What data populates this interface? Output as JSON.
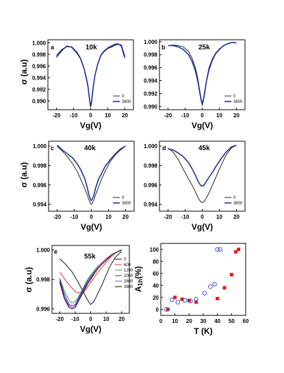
{
  "chart_data": [
    {
      "panel": "a",
      "type": "line",
      "annotation": "10k",
      "xlabel": "Vg(V)",
      "ylabel": "σ (a.u)",
      "xlim": [
        -25,
        25
      ],
      "ylim": [
        0.9885,
        1.0005
      ],
      "xticks": [
        -20,
        -10,
        0,
        10,
        20
      ],
      "yticks": [
        0.99,
        0.992,
        0.994,
        0.996,
        0.998,
        1.0
      ],
      "series": [
        {
          "name": "0",
          "color": "#222222",
          "x": [
            -20,
            -17,
            -14,
            -11,
            -8,
            -6,
            -4,
            -2.5,
            -1.5,
            -1,
            -0.5,
            0,
            0.5,
            1,
            1.5,
            2.5,
            4,
            6,
            8,
            10,
            12,
            14,
            16,
            18,
            19,
            20
          ],
          "y": [
            0.9978,
            0.9988,
            0.9993,
            0.9993,
            0.9984,
            0.9974,
            0.9958,
            0.994,
            0.9925,
            0.9912,
            0.99,
            0.9893,
            0.99,
            0.9913,
            0.9926,
            0.9945,
            0.9963,
            0.9978,
            0.9985,
            0.999,
            0.9992,
            0.9995,
            0.9997,
            0.9996,
            0.9986,
            0.9977
          ]
        },
        {
          "name": "3600",
          "color": "#1f2f9a",
          "x": [
            -20,
            -17,
            -14,
            -11,
            -8,
            -6,
            -4,
            -2.5,
            -1.5,
            -1,
            -0.5,
            0,
            0.5,
            1,
            1.5,
            2.5,
            4,
            6,
            8,
            10,
            12,
            14,
            16,
            18,
            19,
            20
          ],
          "y": [
            0.9975,
            0.9986,
            0.9994,
            0.9992,
            0.9982,
            0.9973,
            0.9957,
            0.9938,
            0.9923,
            0.991,
            0.9898,
            0.989,
            0.9898,
            0.9911,
            0.9925,
            0.9944,
            0.9962,
            0.9979,
            0.9986,
            0.9991,
            0.9994,
            0.9997,
            0.9998,
            0.9994,
            0.9983,
            0.9974
          ]
        }
      ]
    },
    {
      "panel": "b",
      "type": "line",
      "annotation": "25k",
      "xlabel": "Vg(V)",
      "ylabel": "",
      "xlim": [
        -25,
        25
      ],
      "ylim": [
        0.9895,
        1.0003
      ],
      "xticks": [
        -20,
        -10,
        0,
        10,
        20
      ],
      "yticks": [
        0.99,
        0.992,
        0.994,
        0.996,
        0.998,
        1.0
      ],
      "series": [
        {
          "name": "0",
          "color": "#222222",
          "x": [
            -20,
            -17,
            -14,
            -11,
            -8,
            -6,
            -4,
            -2.5,
            -1.5,
            -0.5,
            0,
            0.5,
            1.5,
            2.5,
            4,
            6,
            8,
            10,
            12,
            14,
            16,
            18,
            20
          ],
          "y": [
            0.9994,
            0.9995,
            0.9994,
            0.9992,
            0.9985,
            0.9975,
            0.996,
            0.9942,
            0.9925,
            0.991,
            0.9905,
            0.991,
            0.9925,
            0.9942,
            0.996,
            0.9974,
            0.9983,
            0.9989,
            0.9993,
            0.9996,
            0.9998,
            0.9999,
            0.9998
          ]
        },
        {
          "name": "3600",
          "color": "#1f2f9a",
          "x": [
            -20,
            -17,
            -14,
            -11,
            -8,
            -6,
            -4,
            -2.5,
            -1.5,
            -0.5,
            0,
            0.5,
            1.5,
            2.5,
            4,
            6,
            8,
            10,
            12,
            14,
            16,
            18,
            20
          ],
          "y": [
            0.9994,
            0.9994,
            0.9992,
            0.9988,
            0.998,
            0.997,
            0.9955,
            0.9938,
            0.9922,
            0.9908,
            0.9903,
            0.9908,
            0.9922,
            0.994,
            0.9957,
            0.9972,
            0.9982,
            0.9988,
            0.9993,
            0.9996,
            0.9998,
            0.9999,
            0.9998
          ]
        }
      ]
    },
    {
      "panel": "c",
      "type": "line",
      "annotation": "40k",
      "xlabel": "Vg(V)",
      "ylabel": "σ (a.u)",
      "xlim": [
        -25,
        25
      ],
      "ylim": [
        0.9933,
        1.0005
      ],
      "xticks": [
        -20,
        -10,
        0,
        10,
        20
      ],
      "yticks": [
        0.994,
        0.996,
        0.998,
        1.0
      ],
      "series": [
        {
          "name": "0",
          "color": "#222222",
          "x": [
            -20,
            -17,
            -14,
            -11,
            -8,
            -6,
            -4,
            -2.5,
            -1.5,
            -0.5,
            0,
            0.5,
            1.5,
            2.5,
            4,
            6,
            8,
            11,
            14,
            17,
            20
          ],
          "y": [
            1.0,
            0.9995,
            0.9989,
            0.9982,
            0.9973,
            0.9965,
            0.9957,
            0.995,
            0.9945,
            0.9941,
            0.994,
            0.9941,
            0.9945,
            0.995,
            0.9957,
            0.9966,
            0.9974,
            0.9984,
            0.9991,
            0.9996,
            1.0
          ]
        },
        {
          "name": "3600",
          "color": "#1f2f9a",
          "x": [
            -20,
            -17,
            -14,
            -11,
            -8,
            -6,
            -4,
            -2.5,
            -1.5,
            -0.5,
            0,
            0.5,
            1.5,
            2.5,
            4,
            6,
            8,
            11,
            14,
            17,
            20
          ],
          "y": [
            1.0001,
            0.9996,
            0.9992,
            0.9988,
            0.9981,
            0.9975,
            0.9967,
            0.9958,
            0.995,
            0.9945,
            0.9944,
            0.9945,
            0.995,
            0.9957,
            0.9965,
            0.9972,
            0.9979,
            0.9986,
            0.9992,
            0.9997,
            1.0
          ]
        }
      ]
    },
    {
      "panel": "d",
      "type": "line",
      "annotation": "45k",
      "xlabel": "Vg(V)",
      "ylabel": "",
      "xlim": [
        -25,
        25
      ],
      "ylim": [
        0.9933,
        1.0005
      ],
      "xticks": [
        -20,
        -10,
        0,
        10,
        20
      ],
      "yticks": [
        0.994,
        0.996,
        0.998,
        1.0
      ],
      "series": [
        {
          "name": "0",
          "color": "#222222",
          "x": [
            -20,
            -17,
            -14,
            -11,
            -8,
            -6,
            -4,
            -2.5,
            -1.5,
            -0.5,
            0,
            0.5,
            1.5,
            2.5,
            4,
            6,
            8,
            11,
            14,
            17,
            20
          ],
          "y": [
            0.9998,
            0.9994,
            0.9986,
            0.9976,
            0.9966,
            0.996,
            0.9953,
            0.9947,
            0.9944,
            0.9942,
            0.9942,
            0.9942,
            0.9944,
            0.9947,
            0.9952,
            0.996,
            0.9968,
            0.998,
            0.9991,
            0.9998,
            1.0001
          ]
        },
        {
          "name": "3600",
          "color": "#1f2f9a",
          "x": [
            -20,
            -17,
            -14,
            -11,
            -8,
            -6,
            -4,
            -2.5,
            -1.5,
            -0.5,
            0,
            0.5,
            1.5,
            2.5,
            4,
            6,
            8,
            11,
            14,
            17,
            20
          ],
          "y": [
            0.9997,
            0.9996,
            0.9993,
            0.9989,
            0.9983,
            0.9977,
            0.997,
            0.9964,
            0.9961,
            0.9959,
            0.9959,
            0.9959,
            0.9961,
            0.9964,
            0.9968,
            0.9973,
            0.9979,
            0.9987,
            0.9994,
            0.9999,
            1.0001
          ]
        }
      ]
    },
    {
      "panel": "e",
      "type": "line",
      "annotation": "55k",
      "xlabel": "Vg(V)",
      "ylabel": "σ (a.u)",
      "xlim": [
        -25,
        25
      ],
      "ylim": [
        0.9957,
        1.0003
      ],
      "xticks": [
        -20,
        -10,
        0,
        10,
        20
      ],
      "yticks": [
        0.996,
        0.998,
        1.0
      ],
      "series": [
        {
          "name": "0",
          "color": "#111111",
          "x": [
            -20,
            -16,
            -12,
            -8,
            -4,
            -2,
            0,
            2,
            4,
            8,
            12,
            16,
            20
          ],
          "y": [
            0.9994,
            0.999,
            0.9985,
            0.9978,
            0.997,
            0.9966,
            0.9963,
            0.9965,
            0.9969,
            0.9978,
            0.9988,
            0.9995,
            0.9999
          ]
        },
        {
          "name": "600",
          "color": "#e8322b",
          "x": [
            -20,
            -16,
            -12,
            -9,
            -6,
            -4,
            -2,
            0,
            2,
            4,
            8,
            12,
            16,
            20
          ],
          "y": [
            0.9985,
            0.9979,
            0.9974,
            0.9971,
            0.9971,
            0.9972,
            0.9975,
            0.9978,
            0.9981,
            0.9984,
            0.9989,
            0.9994,
            0.9998,
            1.0
          ]
        },
        {
          "name": "1200",
          "color": "#1faa3a",
          "x": [
            -20,
            -17,
            -14,
            -12,
            -10,
            -8,
            -5,
            -2,
            0,
            3,
            6,
            10,
            14,
            18,
            20
          ],
          "y": [
            0.9981,
            0.9972,
            0.9966,
            0.9964,
            0.9965,
            0.9968,
            0.9974,
            0.998,
            0.9983,
            0.9987,
            0.999,
            0.9994,
            0.9997,
            0.9999,
            1.0
          ]
        },
        {
          "name": "2000",
          "color": "#2a2fd0",
          "x": [
            -20,
            -17,
            -14,
            -12,
            -10,
            -8,
            -5,
            -2,
            0,
            3,
            6,
            10,
            14,
            18,
            20
          ],
          "y": [
            0.998,
            0.997,
            0.9963,
            0.9962,
            0.9963,
            0.9967,
            0.9973,
            0.9979,
            0.9982,
            0.9986,
            0.999,
            0.9994,
            0.9997,
            0.9999,
            1.0
          ]
        },
        {
          "name": "2800",
          "color": "#b22cc4",
          "x": [
            -20,
            -17,
            -14,
            -12,
            -10,
            -8,
            -5,
            -2,
            0,
            3,
            6,
            10,
            14,
            18,
            20
          ],
          "y": [
            0.9979,
            0.9968,
            0.9962,
            0.9961,
            0.9962,
            0.9966,
            0.9972,
            0.9978,
            0.9981,
            0.9986,
            0.999,
            0.9994,
            0.9997,
            0.9999,
            1.0
          ]
        },
        {
          "name": "3600",
          "color": "#000000",
          "x": [
            -20,
            -17,
            -14,
            -12,
            -10,
            -8,
            -5,
            -2,
            0,
            3,
            6,
            10,
            14,
            18,
            20
          ],
          "y": [
            0.9978,
            0.9967,
            0.9961,
            0.996,
            0.9961,
            0.9965,
            0.9971,
            0.9977,
            0.998,
            0.9985,
            0.9989,
            0.9993,
            0.9997,
            0.9999,
            1.0
          ]
        }
      ]
    },
    {
      "panel": "f",
      "type": "scatter",
      "xlabel": "T (K)",
      "ylabel": "A1h(%)",
      "xlim": [
        0,
        60
      ],
      "ylim": [
        -10,
        110
      ],
      "xticks": [
        0,
        10,
        20,
        30,
        40,
        50,
        60
      ],
      "yticks": [
        0,
        20,
        40,
        60,
        80,
        100
      ],
      "series": [
        {
          "marker": "filled-square",
          "color": "#e31a1c",
          "x": [
            5,
            10,
            15,
            20,
            25,
            40,
            45,
            50,
            53,
            55
          ],
          "y": [
            0,
            20,
            17,
            15,
            12,
            18,
            36,
            58,
            96,
            100
          ]
        },
        {
          "marker": "open-circle",
          "color": "#2b3bd6",
          "x": [
            4,
            8,
            12,
            17,
            21,
            25,
            31,
            35,
            38,
            40,
            42
          ],
          "y": [
            0,
            16,
            12,
            15,
            14,
            17,
            27,
            38,
            42,
            100,
            100
          ]
        }
      ]
    }
  ]
}
